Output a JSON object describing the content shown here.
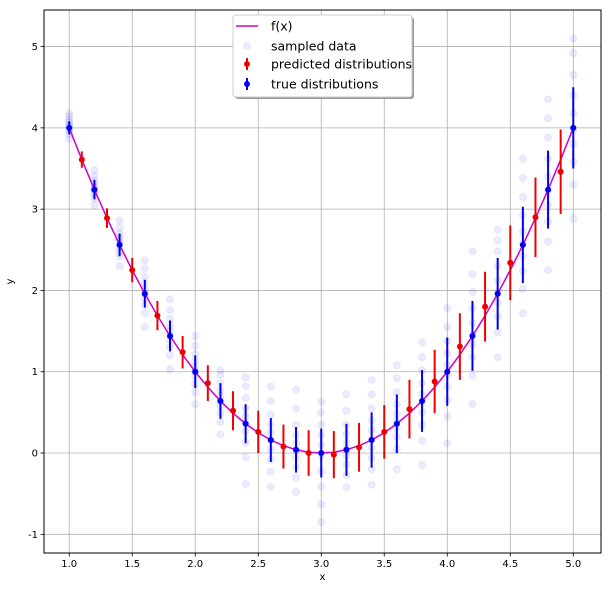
{
  "chart_data": {
    "type": "scatter",
    "title": "",
    "xlabel": "x",
    "ylabel": "y",
    "xlim": [
      0.8,
      5.22
    ],
    "ylim": [
      -1.23,
      5.45
    ],
    "grid": true,
    "legend_position": "top-center",
    "xticks": [
      "1.0",
      "1.5",
      "2.0",
      "2.5",
      "3.0",
      "3.5",
      "4.0",
      "4.5",
      "5.0"
    ],
    "yticks": [
      "-1",
      "0",
      "1",
      "2",
      "3",
      "4",
      "5"
    ],
    "series": [
      {
        "name": "f(x)",
        "kind": "line",
        "color": "#cc00cc",
        "x": [
          1.0,
          1.1,
          1.2,
          1.3,
          1.4,
          1.5,
          1.6,
          1.7,
          1.8,
          1.9,
          2.0,
          2.1,
          2.2,
          2.3,
          2.4,
          2.5,
          2.6,
          2.7,
          2.8,
          2.9,
          3.0,
          3.1,
          3.2,
          3.3,
          3.4,
          3.5,
          3.6,
          3.7,
          3.8,
          3.9,
          4.0,
          4.1,
          4.2,
          4.3,
          4.4,
          4.5,
          4.6,
          4.7,
          4.8,
          4.9,
          5.0
        ],
        "y": [
          4.0,
          3.61,
          3.24,
          2.89,
          2.56,
          2.25,
          1.96,
          1.69,
          1.44,
          1.21,
          1.0,
          0.81,
          0.64,
          0.49,
          0.36,
          0.25,
          0.16,
          0.09,
          0.04,
          0.01,
          0.0,
          0.01,
          0.04,
          0.09,
          0.16,
          0.25,
          0.36,
          0.49,
          0.64,
          0.81,
          1.0,
          1.21,
          1.44,
          1.69,
          1.96,
          2.25,
          2.56,
          2.89,
          3.24,
          3.61,
          4.0
        ]
      },
      {
        "name": "sampled data",
        "kind": "scatter",
        "color": "#ccccff",
        "x": [
          1.0,
          1.0,
          1.0,
          1.0,
          1.0,
          1.0,
          1.0,
          1.0,
          1.0,
          1.0,
          1.2,
          1.2,
          1.2,
          1.2,
          1.2,
          1.2,
          1.2,
          1.2,
          1.2,
          1.2,
          1.4,
          1.4,
          1.4,
          1.4,
          1.4,
          1.4,
          1.4,
          1.4,
          1.4,
          1.4,
          1.6,
          1.6,
          1.6,
          1.6,
          1.6,
          1.6,
          1.6,
          1.6,
          1.6,
          1.6,
          1.8,
          1.8,
          1.8,
          1.8,
          1.8,
          1.8,
          1.8,
          1.8,
          1.8,
          1.8,
          2.0,
          2.0,
          2.0,
          2.0,
          2.0,
          2.0,
          2.0,
          2.0,
          2.0,
          2.0,
          2.2,
          2.2,
          2.2,
          2.2,
          2.2,
          2.2,
          2.2,
          2.2,
          2.2,
          2.2,
          2.4,
          2.4,
          2.4,
          2.4,
          2.4,
          2.4,
          2.4,
          2.4,
          2.4,
          2.4,
          2.6,
          2.6,
          2.6,
          2.6,
          2.6,
          2.6,
          2.6,
          2.6,
          2.6,
          2.6,
          2.8,
          2.8,
          2.8,
          2.8,
          2.8,
          2.8,
          2.8,
          2.8,
          2.8,
          2.8,
          3.0,
          3.0,
          3.0,
          3.0,
          3.0,
          3.0,
          3.0,
          3.0,
          3.0,
          3.0,
          3.2,
          3.2,
          3.2,
          3.2,
          3.2,
          3.2,
          3.2,
          3.2,
          3.2,
          3.2,
          3.4,
          3.4,
          3.4,
          3.4,
          3.4,
          3.4,
          3.4,
          3.4,
          3.4,
          3.4,
          3.6,
          3.6,
          3.6,
          3.6,
          3.6,
          3.6,
          3.6,
          3.6,
          3.6,
          3.6,
          3.8,
          3.8,
          3.8,
          3.8,
          3.8,
          3.8,
          3.8,
          3.8,
          3.8,
          3.8,
          4.0,
          4.0,
          4.0,
          4.0,
          4.0,
          4.0,
          4.0,
          4.0,
          4.0,
          4.0,
          4.2,
          4.2,
          4.2,
          4.2,
          4.2,
          4.2,
          4.2,
          4.2,
          4.2,
          4.2,
          4.4,
          4.4,
          4.4,
          4.4,
          4.4,
          4.4,
          4.4,
          4.4,
          4.4,
          4.4,
          4.6,
          4.6,
          4.6,
          4.6,
          4.6,
          4.6,
          4.6,
          4.6,
          4.6,
          4.6,
          4.8,
          4.8,
          4.8,
          4.8,
          4.8,
          4.8,
          4.8,
          4.8,
          4.8,
          4.8,
          5.0,
          5.0,
          5.0,
          5.0,
          5.0,
          5.0,
          5.0,
          5.0,
          5.0,
          5.0
        ],
        "y": [
          3.86,
          3.92,
          3.96,
          3.99,
          4.02,
          4.04,
          4.07,
          4.1,
          4.14,
          4.18,
          3.05,
          3.13,
          3.18,
          3.21,
          3.24,
          3.27,
          3.31,
          3.35,
          3.41,
          3.48,
          2.3,
          2.42,
          2.48,
          2.53,
          2.57,
          2.61,
          2.65,
          2.7,
          2.77,
          2.86,
          1.55,
          1.72,
          1.82,
          1.9,
          1.96,
          2.02,
          2.09,
          2.17,
          2.27,
          2.37,
          1.03,
          1.2,
          1.3,
          1.38,
          1.44,
          1.5,
          1.57,
          1.65,
          1.76,
          1.89,
          0.6,
          0.75,
          0.85,
          0.94,
          1.0,
          1.06,
          1.13,
          1.22,
          1.32,
          1.44,
          0.23,
          0.38,
          0.49,
          0.58,
          0.64,
          0.7,
          0.77,
          0.86,
          0.96,
          1.02,
          -0.38,
          -0.05,
          0.13,
          0.27,
          0.37,
          0.45,
          0.55,
          0.68,
          0.82,
          0.93,
          -0.42,
          -0.23,
          -0.08,
          0.05,
          0.16,
          0.25,
          0.35,
          0.47,
          0.64,
          0.82,
          -0.48,
          -0.3,
          -0.17,
          -0.06,
          0.03,
          0.12,
          0.22,
          0.35,
          0.55,
          0.78,
          -0.85,
          -0.63,
          -0.41,
          -0.22,
          -0.03,
          0.1,
          0.22,
          0.35,
          0.5,
          0.63,
          -0.42,
          -0.27,
          -0.14,
          -0.03,
          0.05,
          0.13,
          0.23,
          0.35,
          0.52,
          0.72,
          -0.39,
          -0.2,
          -0.06,
          0.06,
          0.17,
          0.28,
          0.4,
          0.55,
          0.72,
          0.9,
          -0.2,
          0.05,
          0.2,
          0.31,
          0.39,
          0.48,
          0.6,
          0.75,
          0.92,
          1.08,
          -0.15,
          0.15,
          0.35,
          0.5,
          0.62,
          0.72,
          0.86,
          1.02,
          1.18,
          1.36,
          0.12,
          0.45,
          0.65,
          0.82,
          0.96,
          1.08,
          1.22,
          1.38,
          1.55,
          1.78,
          0.6,
          0.95,
          1.18,
          1.34,
          1.46,
          1.6,
          1.78,
          1.98,
          2.2,
          2.48,
          1.18,
          1.48,
          1.68,
          1.85,
          1.98,
          2.12,
          2.3,
          2.48,
          2.62,
          2.75,
          1.72,
          2.02,
          2.24,
          2.42,
          2.58,
          2.73,
          2.92,
          3.15,
          3.38,
          3.62,
          2.25,
          2.6,
          2.85,
          3.05,
          3.22,
          3.4,
          3.62,
          3.88,
          4.12,
          4.35,
          2.88,
          3.3,
          3.58,
          3.8,
          3.98,
          4.18,
          4.4,
          4.65,
          4.92,
          5.1
        ]
      },
      {
        "name": "predicted distributions",
        "kind": "errorbar",
        "color": "#ee0000",
        "x": [
          1.1,
          1.3,
          1.5,
          1.7,
          1.9,
          2.1,
          2.3,
          2.5,
          2.7,
          2.9,
          3.1,
          3.3,
          3.5,
          3.7,
          3.9,
          4.1,
          4.3,
          4.5,
          4.7,
          4.9
        ],
        "y": [
          3.61,
          2.89,
          2.25,
          1.69,
          1.24,
          0.86,
          0.52,
          0.26,
          0.08,
          0.0,
          -0.02,
          0.07,
          0.26,
          0.54,
          0.88,
          1.31,
          1.8,
          2.34,
          2.9,
          3.46
        ],
        "err": [
          0.1,
          0.12,
          0.15,
          0.18,
          0.2,
          0.22,
          0.24,
          0.26,
          0.27,
          0.28,
          0.29,
          0.3,
          0.33,
          0.36,
          0.39,
          0.41,
          0.43,
          0.46,
          0.49,
          0.52
        ]
      },
      {
        "name": "true distributions",
        "kind": "errorbar",
        "color": "#0000ee",
        "x": [
          1.0,
          1.2,
          1.4,
          1.6,
          1.8,
          2.0,
          2.2,
          2.4,
          2.6,
          2.8,
          3.0,
          3.2,
          3.4,
          3.6,
          3.8,
          4.0,
          4.2,
          4.4,
          4.6,
          4.8,
          5.0
        ],
        "y": [
          4.0,
          3.24,
          2.56,
          1.96,
          1.44,
          1.0,
          0.64,
          0.36,
          0.16,
          0.04,
          0.0,
          0.04,
          0.16,
          0.36,
          0.64,
          1.0,
          1.44,
          1.96,
          2.56,
          3.24,
          4.0
        ],
        "err": [
          0.08,
          0.12,
          0.14,
          0.17,
          0.19,
          0.2,
          0.22,
          0.24,
          0.27,
          0.28,
          0.3,
          0.32,
          0.34,
          0.36,
          0.38,
          0.42,
          0.43,
          0.44,
          0.47,
          0.48,
          0.5
        ]
      }
    ]
  }
}
